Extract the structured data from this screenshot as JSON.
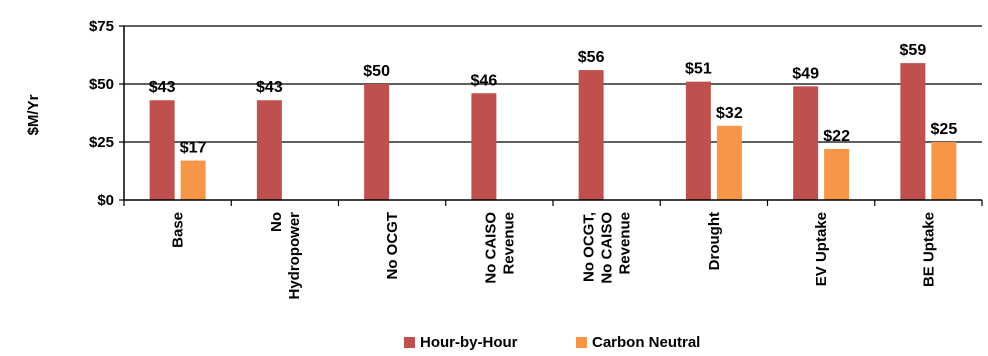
{
  "chart_data": {
    "type": "bar",
    "title": "",
    "xlabel": "",
    "ylabel": "$M/Yr",
    "ylim": [
      0,
      75
    ],
    "yticks": [
      0,
      25,
      50,
      75
    ],
    "ytick_labels": [
      "$0",
      "$25",
      "$50",
      "$75"
    ],
    "grid": true,
    "legend_position": "bottom-center",
    "categories": [
      [
        "Base"
      ],
      [
        "No",
        "Hydropower"
      ],
      [
        "No OCGT"
      ],
      [
        "No CAISO",
        "Revenue"
      ],
      [
        "No OCGT,",
        "No CAISO",
        "Revenue"
      ],
      [
        "Drought"
      ],
      [
        "EV Uptake"
      ],
      [
        "BE Uptake"
      ]
    ],
    "series": [
      {
        "name": "Hour-by-Hour",
        "color": "#C0504D",
        "values": [
          43,
          43,
          50,
          46,
          56,
          51,
          49,
          59
        ],
        "labels": [
          "$43",
          "$43",
          "$50",
          "$46",
          "$56",
          "$51",
          "$49",
          "$59"
        ]
      },
      {
        "name": "Carbon Neutral",
        "color": "#F79646",
        "values": [
          17,
          null,
          null,
          null,
          null,
          32,
          22,
          25
        ],
        "labels": [
          "$17",
          null,
          null,
          null,
          null,
          "$32",
          "$22",
          "$25"
        ]
      }
    ]
  }
}
